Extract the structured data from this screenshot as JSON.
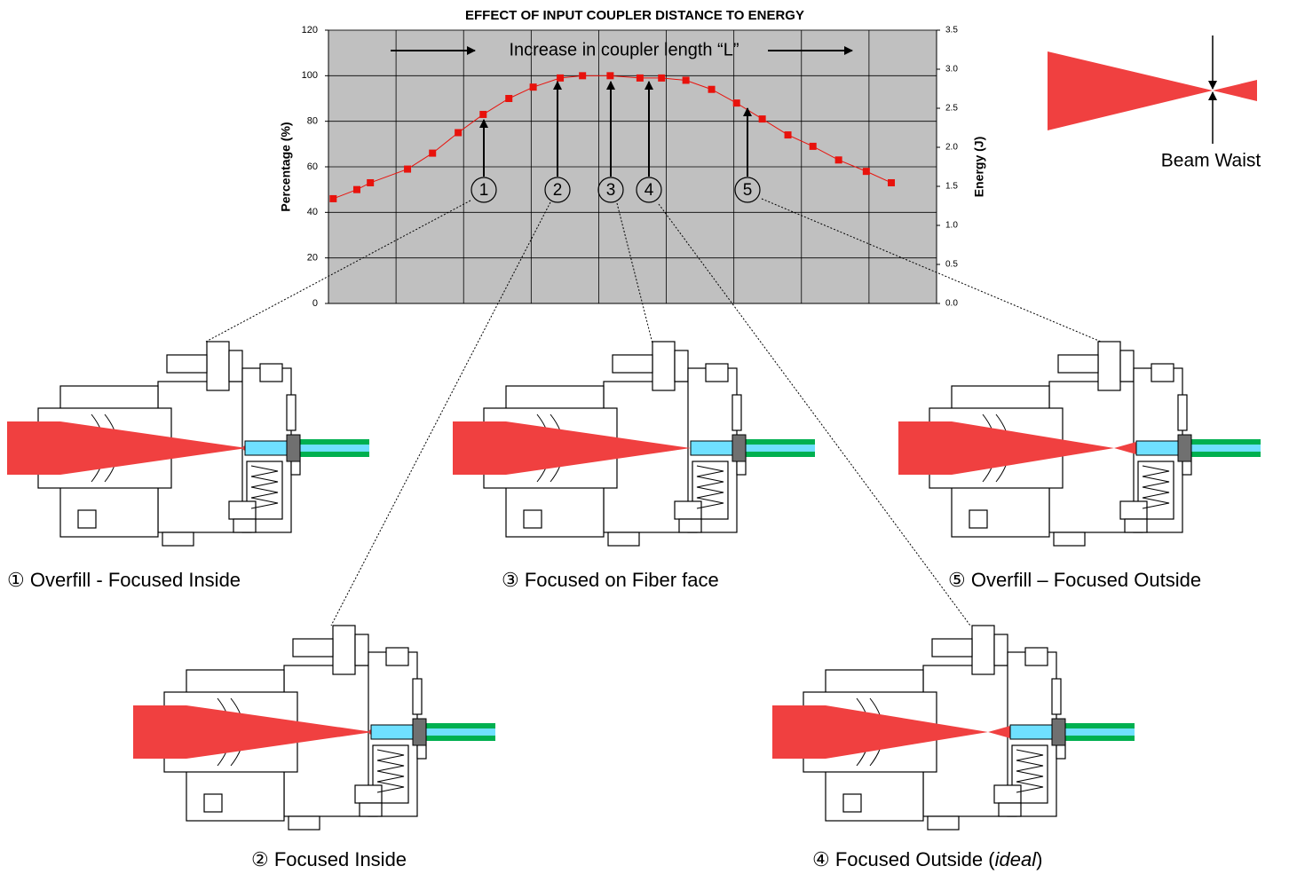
{
  "chart_data": {
    "type": "line",
    "title": "EFFECT OF INPUT COUPLER DISTANCE TO ENERGY",
    "ylabel": "Percentage (%)",
    "y2label": "Energy (J)",
    "annotation": "Increase in coupler length “L”",
    "x": [
      0.07,
      0.42,
      0.62,
      1.17,
      1.54,
      1.92,
      2.29,
      2.67,
      3.03,
      3.43,
      3.76,
      4.17,
      4.61,
      4.93,
      5.29,
      5.67,
      6.04,
      6.42,
      6.8,
      7.17,
      7.55,
      7.96,
      8.33
    ],
    "series": [
      {
        "color": "#e8120c",
        "values": [
          46,
          50,
          53,
          59,
          66,
          75,
          83,
          90,
          95,
          99,
          100,
          100,
          99,
          99,
          98,
          94,
          88,
          81,
          74,
          69,
          63,
          58,
          53
        ]
      }
    ],
    "xlim": [
      0,
      9
    ],
    "xticks": [
      0,
      1,
      2,
      3,
      4,
      5,
      6,
      7,
      8,
      9
    ],
    "ylim": [
      0,
      120
    ],
    "yticks": [
      0,
      20,
      40,
      60,
      80,
      100,
      120
    ],
    "y2lim": [
      0,
      3.5
    ],
    "y2ticks": [
      {
        "value": 0,
        "label": "0.0"
      },
      0.5,
      {
        "value": 1,
        "label": "1.0"
      },
      1.5,
      {
        "value": 2,
        "label": "2.0"
      },
      2.5,
      {
        "value": 3,
        "label": "3.0"
      },
      3.5
    ],
    "grid": true,
    "markers": [
      "1",
      "2",
      "3",
      "4",
      "5"
    ]
  },
  "beam_waist_label": "Beam Waist",
  "captions": [
    "① Overfill - Focused Inside",
    "② Focused Inside",
    "③ Focused on Fiber face",
    {
      "before": "④ Focused Outside (",
      "italic": "ideal",
      "after": ")"
    },
    "⑤ Overfill – Focused Outside"
  ]
}
